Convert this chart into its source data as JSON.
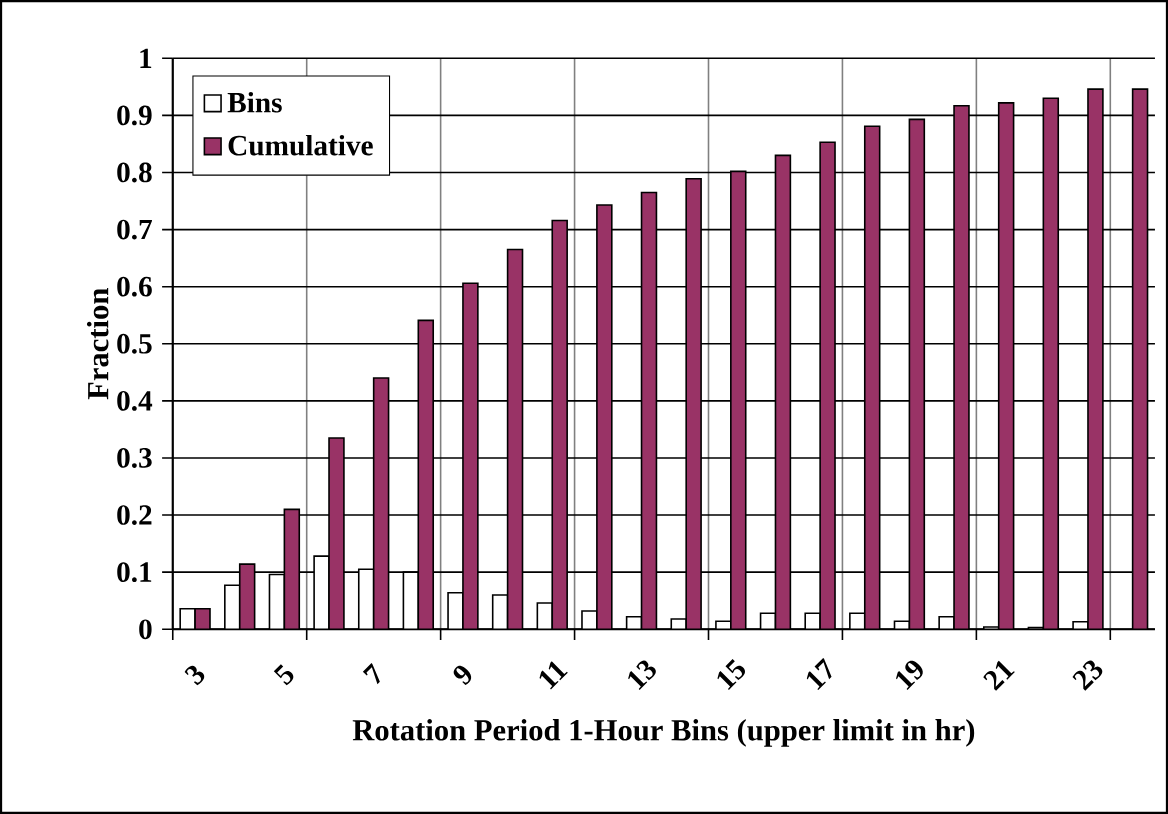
{
  "chart_data": {
    "type": "bar",
    "xlabel": "Rotation Period 1-Hour Bins (upper limit in hr)",
    "ylabel": "Fraction",
    "categories": [
      "3",
      null,
      "5",
      null,
      "7",
      null,
      "9",
      null,
      "11",
      null,
      "13",
      null,
      "15",
      null,
      "17",
      null,
      "19",
      null,
      "21",
      null,
      "23",
      null
    ],
    "series": [
      {
        "name": "Bins",
        "color": "#ffffff",
        "values": [
          0.036,
          0.077,
          0.096,
          0.128,
          0.105,
          0.1,
          0.064,
          0.06,
          0.046,
          0.032,
          0.022,
          0.018,
          0.014,
          0.028,
          0.028,
          0.028,
          0.014,
          0.022,
          0.004,
          0.003,
          0.013,
          null
        ]
      },
      {
        "name": "Cumulative",
        "color": "#993366",
        "values": [
          0.036,
          0.114,
          0.21,
          0.335,
          0.44,
          0.541,
          0.606,
          0.665,
          0.716,
          0.743,
          0.765,
          0.789,
          0.802,
          0.83,
          0.853,
          0.881,
          0.893,
          0.917,
          0.922,
          0.93,
          0.946,
          0.946
        ]
      }
    ],
    "ylim": [
      0,
      1
    ],
    "yticks": [
      0,
      0.1,
      0.2,
      0.3,
      0.4,
      0.5,
      0.6,
      0.7,
      0.8,
      0.9,
      1
    ],
    "grid": true,
    "legend": "top left"
  }
}
